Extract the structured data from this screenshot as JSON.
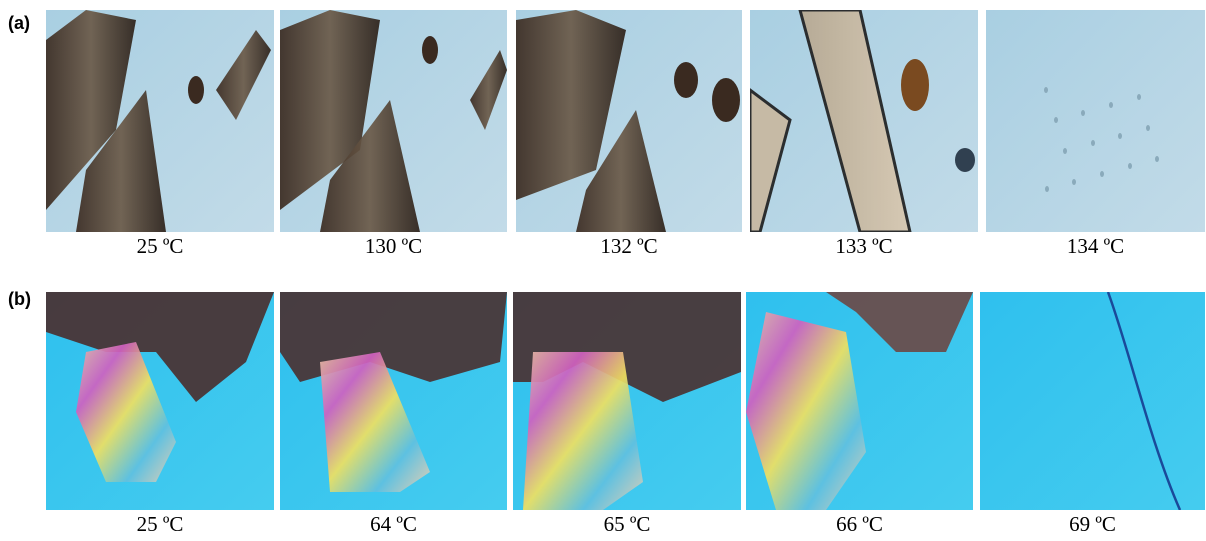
{
  "panels": [
    {
      "label": "(a)",
      "captions": [
        "25 ºC",
        "130 ºC",
        "132 ºC",
        "133 ºC",
        "134 ºC"
      ]
    },
    {
      "label": "(b)",
      "captions": [
        "25 ºC",
        "64 ºC",
        "65 ºC",
        "66 ºC",
        "69 ºC"
      ]
    }
  ]
}
